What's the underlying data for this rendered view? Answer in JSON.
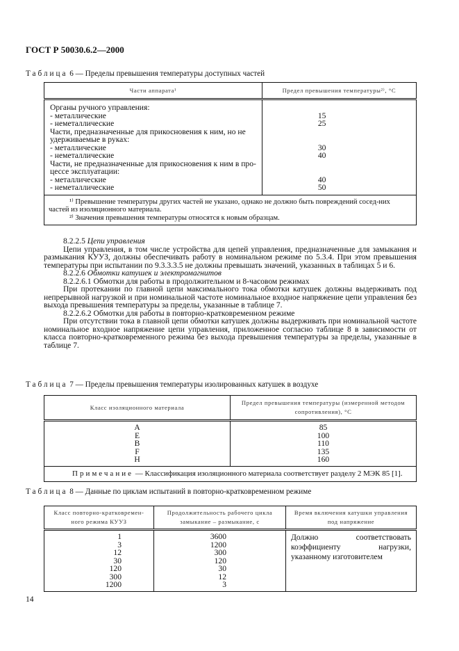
{
  "header": "ГОСТ Р 50030.6.2—2000",
  "table6": {
    "caption_word": "Таблица",
    "caption": "6 — Пределы превышения температуры доступных частей",
    "col1": "Части аппарата¹",
    "col2": "Предел превышения температуры²⁾, °С",
    "rows": [
      [
        "Органы ручного управления:",
        ""
      ],
      [
        "- металлические",
        "15"
      ],
      [
        "- неметаллические",
        "25"
      ],
      [
        "Части, предназначенные для прикосновения к ним, но не",
        ""
      ],
      [
        "удерживаемые в руках:",
        ""
      ],
      [
        "- металлические",
        "30"
      ],
      [
        "- неметаллические",
        "40"
      ],
      [
        "Части, не предназначенные для прикосновения к ним в про-",
        ""
      ],
      [
        "цессе эксплуатации:",
        ""
      ],
      [
        "- металлические",
        "40"
      ],
      [
        "- неметаллические",
        "50"
      ]
    ],
    "footnote1": "¹⁾ Превышение температуры других частей не указано, однако не должно быть повреждений сосед-них частей из изоляционного материала.",
    "footnote2": "²⁾ Значения превышения температуры относятся к новым образцам."
  },
  "body": {
    "p1_num": "8.2.2.5",
    "p1_title": "Цепи управления",
    "p2": "Цепи управления, в том числе устройства для цепей управления, предназначенные для замыкания и размыкания КУУЗ, должны обеспечивать работу в номинальном режиме по 5.3.4. При этом превышения температуры при испытании по 9.3.3.3.5 не должны превышать значений, указанных в таблицах 5 и 6.",
    "p3_num": "8.2.2.6",
    "p3_title": "Обмотки катушек и электромагнитов",
    "p4": "8.2.2.6.1 Обмотки для работы в продолжительном и 8-часовом режимах",
    "p5": "При протекании по главной цепи максимального тока обмотки катушек должны выдерживать под непрерывной нагрузкой и при номинальной частоте номинальное входное напряжение цепи управления без выхода превышения температуры за пределы, указанные в таблице 7.",
    "p6": "8.2.2.6.2 Обмотки для работы в повторно-кратковременном режиме",
    "p7": "При отсутствии тока в главной цепи обмотки катушек должны выдерживать при номинальной частоте номинальное входное напряжение цепи управления, приложенное согласно таблице 8 в зависимости от класса повторно-кратковременного режима без выхода превышения температуры за пределы, указанные в таблице 7."
  },
  "table7": {
    "caption_word": "Таблица",
    "caption": "7 — Пределы превышения температуры изолированных катушек в воздухе",
    "col1": "Класс изоляционного материала",
    "col2": "Предел превышения температуры (измеренной методом сопротивления), °С",
    "classes": [
      "A",
      "E",
      "B",
      "F",
      "H"
    ],
    "values": [
      "85",
      "100",
      "110",
      "135",
      "160"
    ],
    "note_word": "Примечание",
    "note": "— Классификация изоляционного материала соответствует разделу 2 МЭК 85 [1]."
  },
  "table8": {
    "caption_word": "Таблица",
    "caption": "8 — Данные по циклам испытаний в повторно-кратковременном режиме",
    "col1": "Класс повторно-кратковремен-ного режима КУУЗ",
    "col2": "Продолжительность рабочего цикла замыкание – размыкание, с",
    "col3": "Время включения катушки управления под напряжение",
    "classes": [
      "1",
      "3",
      "12",
      "30",
      "120",
      "300",
      "1200"
    ],
    "durations": [
      "3600",
      "1200",
      "300",
      "120",
      "30",
      "12",
      "3"
    ],
    "col3_text": "Должно соответствовать коэффициенту нагрузки, указанному изготовителем"
  },
  "page_number": "14"
}
